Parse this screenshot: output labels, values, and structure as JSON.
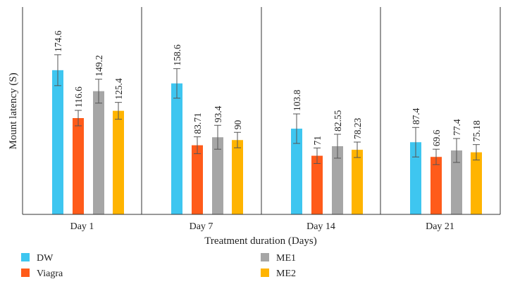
{
  "chart_data": {
    "type": "bar",
    "title": "",
    "xlabel": "Treatment duration (Days)",
    "ylabel": "Mount latency (S)",
    "categories": [
      "Day 1",
      "Day 7",
      "Day 14",
      "Day 21"
    ],
    "ylim": [
      0,
      250
    ],
    "grid": false,
    "legend_position": "bottom",
    "series": [
      {
        "name": "DW",
        "color": "#3ec6f0",
        "values": [
          174.6,
          158.6,
          103.8,
          87.4
        ],
        "labels": [
          "174.6",
          "158.6",
          "103.8",
          "87.4"
        ],
        "errors": [
          22,
          21,
          21,
          21
        ]
      },
      {
        "name": "Viagra",
        "color": "#ff5b1a",
        "values": [
          116.6,
          83.71,
          71,
          69.6
        ],
        "labels": [
          "116.6",
          "83.71",
          "71",
          "69.6"
        ],
        "errors": [
          11,
          12,
          11,
          11
        ]
      },
      {
        "name": "ME1",
        "color": "#a6a6a6",
        "values": [
          149.2,
          93.4,
          82.55,
          77.4
        ],
        "labels": [
          "149.2",
          "93.4",
          "82.55",
          "77.4"
        ],
        "errors": [
          17,
          17,
          17,
          17
        ]
      },
      {
        "name": "ME2",
        "color": "#ffb400",
        "values": [
          125.4,
          90,
          78.23,
          75.18
        ],
        "labels": [
          "125.4",
          "90",
          "78.23",
          "75.18"
        ],
        "errors": [
          12,
          11,
          11,
          11
        ]
      }
    ]
  }
}
